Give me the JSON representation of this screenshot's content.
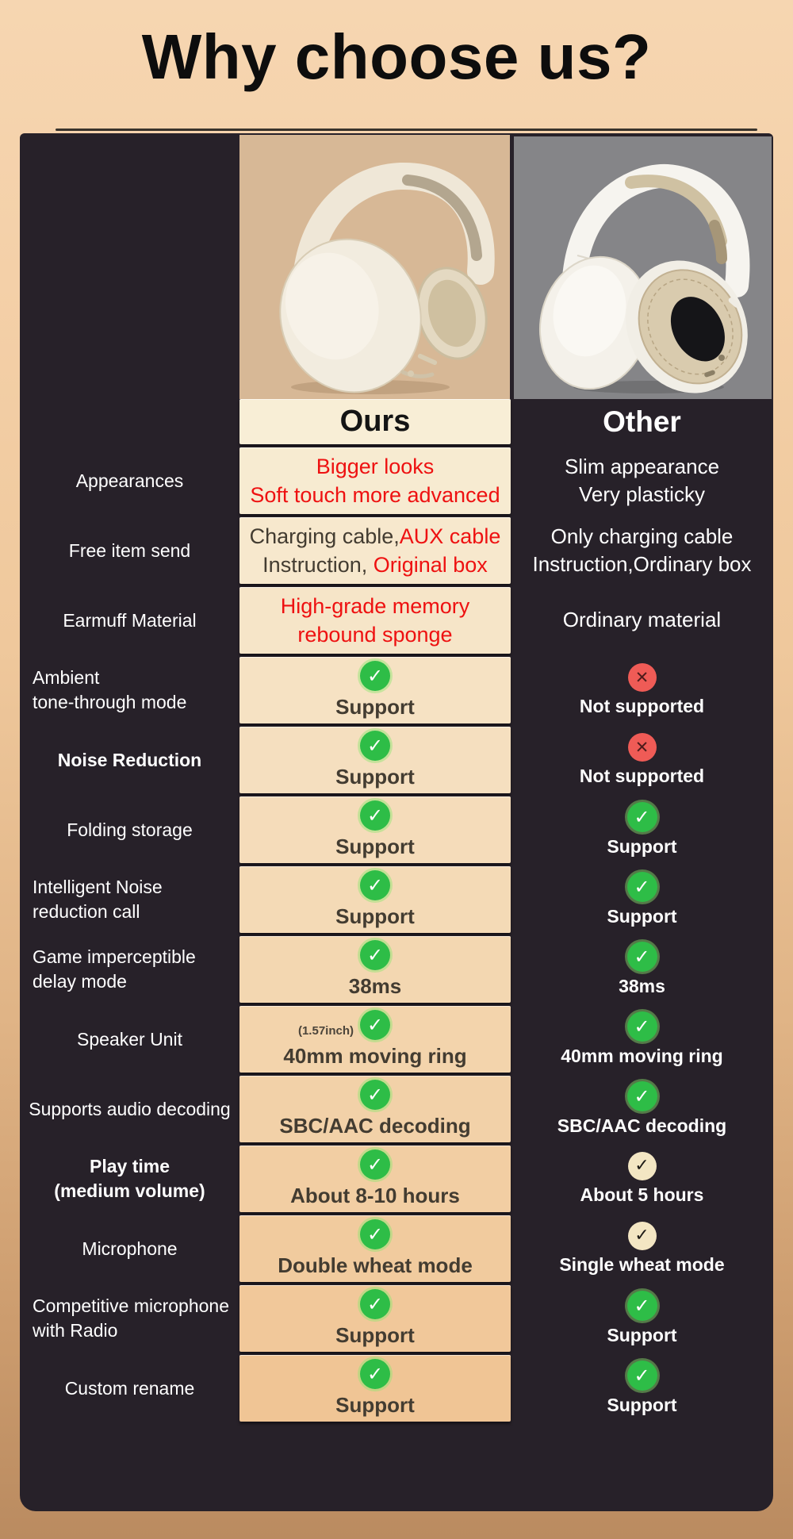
{
  "page": {
    "title": "Why choose us?"
  },
  "colors": {
    "red_text": "#ee1111",
    "dark_text": "#433c31",
    "green_check": "#2ebd47",
    "red_cross": "#ef5b56",
    "cream_check": "#f3e6c3",
    "card_top": "#f8eed6",
    "card_bottom": "#f0c595",
    "panel_bg": "#272129",
    "ours_photo_bg": "#d7b896",
    "other_photo_bg": "#858588",
    "frame_top": "#f4d0a8",
    "frame_bottom": "#ba8b60"
  },
  "icons": {
    "check-green": "✓",
    "cross-red": "✕",
    "check-cream": "✓"
  },
  "table": {
    "ours_header": "Ours",
    "other_header": "Other",
    "rows": [
      {
        "label": [
          "Appearances"
        ],
        "ours": {
          "lines": [
            [
              {
                "t": "Bigger looks",
                "c": "red"
              }
            ],
            [
              {
                "t": "Soft touch more advanced",
                "c": "red"
              }
            ]
          ]
        },
        "other": {
          "lines": [
            [
              {
                "t": "Slim appearance"
              }
            ],
            [
              {
                "t": "Very plasticky"
              }
            ]
          ]
        }
      },
      {
        "label": [
          "Free item send"
        ],
        "ours": {
          "lines": [
            [
              {
                "t": "Charging cable,",
                "c": "dark"
              },
              {
                "t": "AUX cable",
                "c": "red"
              }
            ],
            [
              {
                "t": "Instruction, ",
                "c": "dark"
              },
              {
                "t": "Original box",
                "c": "red"
              }
            ]
          ]
        },
        "other": {
          "lines": [
            [
              {
                "t": "Only charging cable"
              }
            ],
            [
              {
                "t": "Instruction,Ordinary box"
              }
            ]
          ]
        }
      },
      {
        "label": [
          "Earmuff Material"
        ],
        "ours": {
          "lines": [
            [
              {
                "t": "High-grade memory",
                "c": "red"
              }
            ],
            [
              {
                "t": "rebound sponge",
                "c": "red"
              }
            ]
          ]
        },
        "other": {
          "lines": [
            [
              {
                "t": "Ordinary material"
              }
            ]
          ]
        }
      },
      {
        "label": [
          "Ambient",
          "tone-through mode"
        ],
        "label_align": "left",
        "ours": {
          "icon": "check-green",
          "lines": [
            [
              {
                "t": "Support"
              }
            ]
          ]
        },
        "other": {
          "icon": "cross-red",
          "lines": [
            [
              {
                "t": "Not supported"
              }
            ]
          ]
        }
      },
      {
        "label": [
          "Noise Reduction"
        ],
        "label_bold": true,
        "ours": {
          "icon": "check-green",
          "lines": [
            [
              {
                "t": "Support"
              }
            ]
          ]
        },
        "other": {
          "icon": "cross-red",
          "lines": [
            [
              {
                "t": "Not supported"
              }
            ]
          ]
        }
      },
      {
        "label": [
          "Folding storage"
        ],
        "ours": {
          "icon": "check-green",
          "lines": [
            [
              {
                "t": "Support"
              }
            ]
          ]
        },
        "other": {
          "icon": "check-green",
          "lines": [
            [
              {
                "t": "Support"
              }
            ]
          ]
        }
      },
      {
        "label": [
          "Intelligent Noise",
          "reduction call"
        ],
        "label_align": "left",
        "ours": {
          "icon": "check-green",
          "lines": [
            [
              {
                "t": "Support"
              }
            ]
          ]
        },
        "other": {
          "icon": "check-green",
          "lines": [
            [
              {
                "t": "Support"
              }
            ]
          ]
        }
      },
      {
        "label": [
          "Game imperceptible",
          "delay mode"
        ],
        "label_align": "left",
        "ours": {
          "icon": "check-green",
          "lines": [
            [
              {
                "t": "38ms"
              }
            ]
          ]
        },
        "other": {
          "icon": "check-green",
          "lines": [
            [
              {
                "t": "38ms"
              }
            ]
          ]
        }
      },
      {
        "label": [
          "Speaker Unit"
        ],
        "ours": {
          "icon": "check-green",
          "note": "(1.57inch)",
          "lines": [
            [
              {
                "t": "40mm moving ring"
              }
            ]
          ]
        },
        "other": {
          "icon": "check-green",
          "lines": [
            [
              {
                "t": "40mm moving ring"
              }
            ]
          ]
        }
      },
      {
        "label": [
          "Supports audio decoding"
        ],
        "ours": {
          "icon": "check-green",
          "lines": [
            [
              {
                "t": "SBC/AAC decoding"
              }
            ]
          ]
        },
        "other": {
          "icon": "check-green",
          "lines": [
            [
              {
                "t": "SBC/AAC decoding"
              }
            ]
          ]
        }
      },
      {
        "label": [
          "Play time",
          "(medium volume)"
        ],
        "label_bold": true,
        "ours": {
          "icon": "check-green",
          "lines": [
            [
              {
                "t": "About 8-10 hours"
              }
            ]
          ]
        },
        "other": {
          "icon": "check-cream",
          "lines": [
            [
              {
                "t": "About 5 hours"
              }
            ]
          ]
        }
      },
      {
        "label": [
          "Microphone"
        ],
        "ours": {
          "icon": "check-green",
          "lines": [
            [
              {
                "t": "Double wheat mode"
              }
            ]
          ]
        },
        "other": {
          "icon": "check-cream",
          "lines": [
            [
              {
                "t": "Single wheat mode"
              }
            ]
          ]
        }
      },
      {
        "label": [
          "Competitive microphone",
          "with Radio"
        ],
        "label_align": "left",
        "ours": {
          "icon": "check-green",
          "lines": [
            [
              {
                "t": "Support"
              }
            ]
          ]
        },
        "other": {
          "icon": "check-green",
          "lines": [
            [
              {
                "t": "Support"
              }
            ]
          ]
        }
      },
      {
        "label": [
          "Custom rename"
        ],
        "ours": {
          "icon": "check-green",
          "lines": [
            [
              {
                "t": "Support"
              }
            ]
          ]
        },
        "other": {
          "icon": "check-green",
          "lines": [
            [
              {
                "t": "Support"
              }
            ]
          ]
        }
      }
    ]
  }
}
